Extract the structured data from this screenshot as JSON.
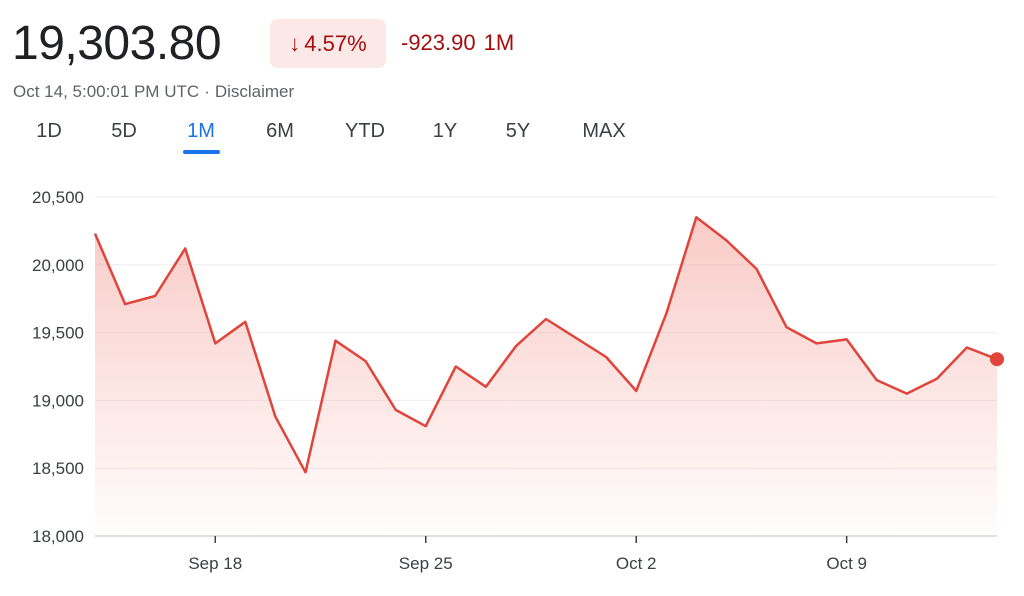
{
  "quote": {
    "price": "19,303.80",
    "change_percent": "4.57%",
    "change_direction": "down",
    "change_absolute": "-923.90",
    "change_period": "1M",
    "timestamp": "Oct 14, 5:00:01 PM UTC",
    "disclaimer": "Disclaimer"
  },
  "tabs": [
    {
      "label": "1D",
      "active": false
    },
    {
      "label": "5D",
      "active": false
    },
    {
      "label": "1M",
      "active": true
    },
    {
      "label": "6M",
      "active": false
    },
    {
      "label": "YTD",
      "active": false
    },
    {
      "label": "1Y",
      "active": false
    },
    {
      "label": "5Y",
      "active": false
    },
    {
      "label": "MAX",
      "active": false
    }
  ],
  "colors": {
    "line": "#e0443a",
    "fill": "#f28b82",
    "negative_text": "#a50e0e",
    "badge_bg": "#fce8e6",
    "active_tab": "#1a73e8"
  },
  "chart_data": {
    "type": "area",
    "x": [
      "Sep 14",
      "Sep 15",
      "Sep 16",
      "Sep 17",
      "Sep 18",
      "Sep 19",
      "Sep 20",
      "Sep 21",
      "Sep 22",
      "Sep 23",
      "Sep 24",
      "Sep 25",
      "Sep 26",
      "Sep 27",
      "Sep 28",
      "Sep 29",
      "Sep 30",
      "Oct 1",
      "Oct 2",
      "Oct 3",
      "Oct 4",
      "Oct 5",
      "Oct 6",
      "Oct 7",
      "Oct 8",
      "Oct 9",
      "Oct 10",
      "Oct 11",
      "Oct 12",
      "Oct 13",
      "Oct 14"
    ],
    "values": [
      20230,
      19710,
      19770,
      20120,
      19420,
      19580,
      18880,
      18470,
      19440,
      19290,
      18930,
      18810,
      19250,
      19100,
      19400,
      19600,
      19460,
      19320,
      19070,
      19640,
      20350,
      20180,
      19970,
      19540,
      19420,
      19450,
      19150,
      19050,
      19160,
      19390,
      19303.8
    ],
    "ylim": [
      18000,
      20500
    ],
    "yticks": [
      "18,000",
      "18,500",
      "19,000",
      "19,500",
      "20,000",
      "20,500"
    ],
    "xticks": [
      "Sep 18",
      "Sep 25",
      "Oct 2",
      "Oct 9"
    ],
    "grid": true
  }
}
